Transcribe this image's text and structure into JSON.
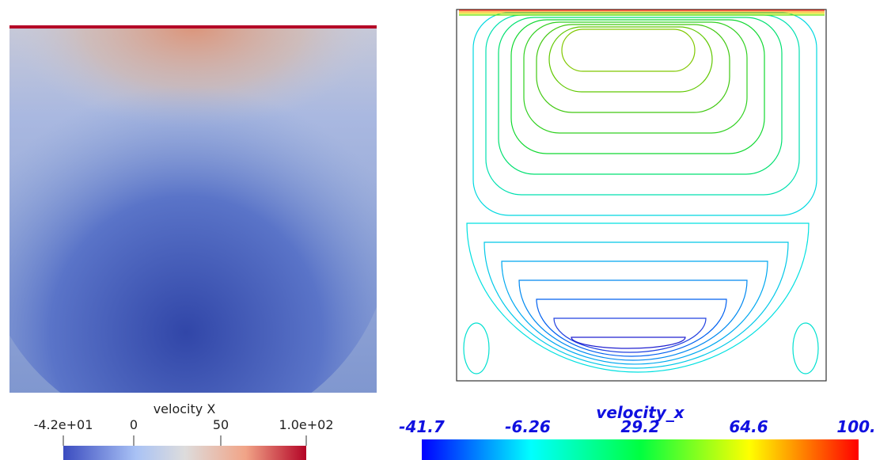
{
  "left_panel": {
    "colorbar": {
      "title": "velocity X",
      "tick_labels": [
        "-4.2e+01",
        "0",
        "50",
        "1.0e+02"
      ]
    }
  },
  "right_panel": {
    "colorbar": {
      "title": "velocity_x",
      "tick_labels": [
        "-41.7",
        "-6.26",
        "29.2",
        "64.6",
        "100."
      ]
    }
  }
}
